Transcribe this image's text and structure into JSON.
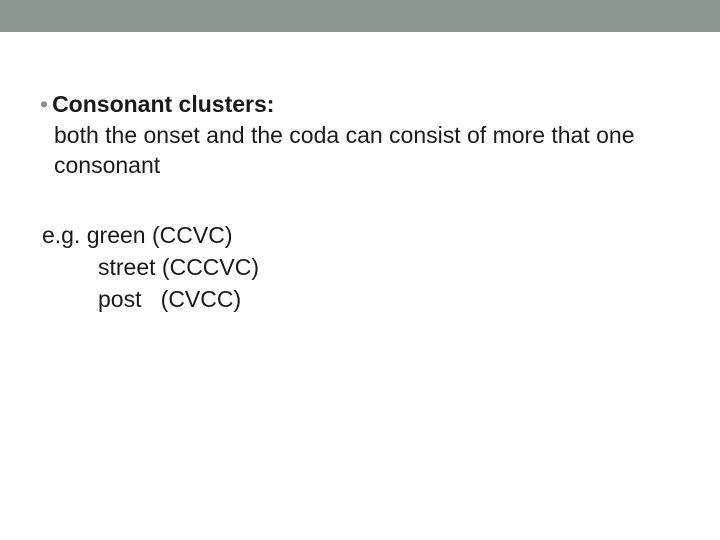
{
  "band_color": "#8a9690",
  "text_color": "#1a1a1a",
  "bullet_color": "#8c8c8c",
  "font_size_pt": 17,
  "heading": "Consonant clusters:",
  "description": "both the onset and the coda  can consist of more that one consonant",
  "eg_prefix": "e.g. ",
  "examples": [
    {
      "word": "green",
      "pattern": "(CCVC)"
    },
    {
      "word": "street",
      "pattern": "(CCCVC)"
    },
    {
      "word": "post",
      "pattern": "(CVCC)"
    }
  ]
}
